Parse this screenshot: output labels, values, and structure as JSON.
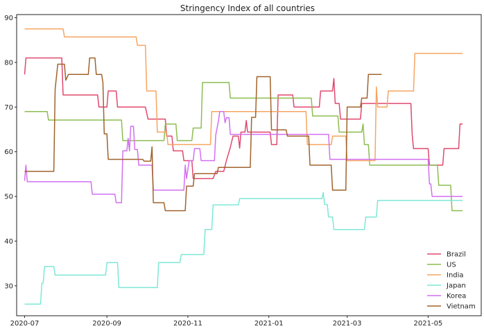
{
  "chart_data": {
    "type": "line",
    "title": "Stringency Index of all countries",
    "xlabel": "",
    "ylabel": "",
    "x_range": [
      "2020-06-25",
      "2021-06-10"
    ],
    "ylim": [
      23.3,
      90.7
    ],
    "x_ticks": [
      {
        "date": "2020-07-01",
        "label": "2020-07"
      },
      {
        "date": "2020-09-01",
        "label": "2020-09"
      },
      {
        "date": "2020-11-01",
        "label": "2020-11"
      },
      {
        "date": "2021-01-01",
        "label": "2021-01"
      },
      {
        "date": "2021-03-01",
        "label": "2021-03"
      },
      {
        "date": "2021-05-01",
        "label": "2021-05"
      }
    ],
    "y_ticks": [
      30,
      40,
      50,
      60,
      70,
      80,
      90
    ],
    "grid": false,
    "legend_position": "bottom-right",
    "series": [
      {
        "name": "Brazil",
        "color": "#e0486e",
        "points": [
          [
            "2020-07-01",
            77.3
          ],
          [
            "2020-07-02",
            81.0
          ],
          [
            "2020-07-29",
            81.0
          ],
          [
            "2020-07-30",
            72.7
          ],
          [
            "2020-08-25",
            72.7
          ],
          [
            "2020-08-26",
            70.0
          ],
          [
            "2020-09-01",
            70.0
          ],
          [
            "2020-09-02",
            73.6
          ],
          [
            "2020-09-08",
            73.6
          ],
          [
            "2020-09-09",
            70.0
          ],
          [
            "2020-09-30",
            70.0
          ],
          [
            "2020-10-02",
            67.3
          ],
          [
            "2020-10-15",
            67.3
          ],
          [
            "2020-10-16",
            63.5
          ],
          [
            "2020-10-20",
            63.5
          ],
          [
            "2020-10-21",
            60.2
          ],
          [
            "2020-10-28",
            60.2
          ],
          [
            "2020-10-29",
            58.0
          ],
          [
            "2020-11-04",
            58.0
          ],
          [
            "2020-11-05",
            54.0
          ],
          [
            "2020-11-20",
            54.0
          ],
          [
            "2020-11-22",
            55.6
          ],
          [
            "2020-11-28",
            55.6
          ],
          [
            "2020-11-30",
            58.0
          ],
          [
            "2020-12-03",
            61.0
          ],
          [
            "2020-12-05",
            63.5
          ],
          [
            "2020-12-09",
            63.5
          ],
          [
            "2020-12-10",
            60.8
          ],
          [
            "2020-12-11",
            64.4
          ],
          [
            "2020-12-14",
            64.4
          ],
          [
            "2020-12-15",
            67.0
          ],
          [
            "2020-12-16",
            64.4
          ],
          [
            "2021-01-02",
            64.4
          ],
          [
            "2021-01-03",
            61.6
          ],
          [
            "2021-01-07",
            61.6
          ],
          [
            "2021-01-08",
            72.7
          ],
          [
            "2021-01-19",
            72.7
          ],
          [
            "2021-01-20",
            70.0
          ],
          [
            "2021-02-08",
            70.0
          ],
          [
            "2021-02-09",
            73.6
          ],
          [
            "2021-02-18",
            73.6
          ],
          [
            "2021-02-19",
            76.4
          ],
          [
            "2021-02-20",
            70.8
          ],
          [
            "2021-02-23",
            70.8
          ],
          [
            "2021-02-24",
            67.3
          ],
          [
            "2021-03-11",
            67.3
          ],
          [
            "2021-03-12",
            70.8
          ],
          [
            "2021-04-18",
            70.8
          ],
          [
            "2021-04-19",
            63.8
          ],
          [
            "2021-04-20",
            60.7
          ],
          [
            "2021-05-01",
            60.7
          ],
          [
            "2021-05-02",
            57.0
          ],
          [
            "2021-05-12",
            57.0
          ],
          [
            "2021-05-13",
            60.7
          ],
          [
            "2021-05-24",
            60.7
          ],
          [
            "2021-05-25",
            66.2
          ],
          [
            "2021-05-27",
            66.2
          ]
        ]
      },
      {
        "name": "US",
        "color": "#8cbd50",
        "points": [
          [
            "2020-07-01",
            69.0
          ],
          [
            "2020-07-18",
            69.0
          ],
          [
            "2020-07-19",
            67.1
          ],
          [
            "2020-09-12",
            67.1
          ],
          [
            "2020-09-13",
            62.5
          ],
          [
            "2020-10-14",
            62.5
          ],
          [
            "2020-10-15",
            66.2
          ],
          [
            "2020-10-23",
            66.2
          ],
          [
            "2020-10-24",
            62.5
          ],
          [
            "2020-11-04",
            62.5
          ],
          [
            "2020-11-05",
            65.3
          ],
          [
            "2020-11-11",
            65.3
          ],
          [
            "2020-11-12",
            75.5
          ],
          [
            "2020-12-02",
            75.5
          ],
          [
            "2020-12-03",
            72.0
          ],
          [
            "2021-02-02",
            72.0
          ],
          [
            "2021-02-03",
            68.0
          ],
          [
            "2021-02-22",
            68.0
          ],
          [
            "2021-02-23",
            64.4
          ],
          [
            "2021-03-12",
            64.4
          ],
          [
            "2021-03-13",
            66.2
          ],
          [
            "2021-03-14",
            61.6
          ],
          [
            "2021-03-17",
            61.6
          ],
          [
            "2021-03-18",
            57.0
          ],
          [
            "2021-05-08",
            57.0
          ],
          [
            "2021-05-09",
            52.5
          ],
          [
            "2021-05-18",
            52.5
          ],
          [
            "2021-05-19",
            46.8
          ],
          [
            "2021-05-27",
            46.8
          ]
        ]
      },
      {
        "name": "India",
        "color": "#f6a561",
        "points": [
          [
            "2020-07-01",
            87.5
          ],
          [
            "2020-07-30",
            87.5
          ],
          [
            "2020-07-31",
            85.7
          ],
          [
            "2020-09-23",
            85.7
          ],
          [
            "2020-09-24",
            83.8
          ],
          [
            "2020-09-30",
            83.8
          ],
          [
            "2020-10-01",
            73.6
          ],
          [
            "2020-10-08",
            73.6
          ],
          [
            "2020-10-09",
            64.4
          ],
          [
            "2020-10-16",
            64.4
          ],
          [
            "2020-10-17",
            61.6
          ],
          [
            "2020-11-18",
            61.6
          ],
          [
            "2020-11-19",
            69.0
          ],
          [
            "2021-01-29",
            69.0
          ],
          [
            "2021-01-30",
            61.6
          ],
          [
            "2021-02-17",
            61.6
          ],
          [
            "2021-02-18",
            63.5
          ],
          [
            "2021-02-28",
            63.5
          ],
          [
            "2021-03-01",
            58.0
          ],
          [
            "2021-03-22",
            58.0
          ],
          [
            "2021-03-23",
            74.5
          ],
          [
            "2021-03-24",
            70.0
          ],
          [
            "2021-03-31",
            70.0
          ],
          [
            "2021-04-01",
            73.6
          ],
          [
            "2021-04-20",
            73.6
          ],
          [
            "2021-04-21",
            82.0
          ],
          [
            "2021-05-27",
            82.0
          ]
        ]
      },
      {
        "name": "Japan",
        "color": "#7de8d6",
        "points": [
          [
            "2020-07-01",
            25.9
          ],
          [
            "2020-07-13",
            25.9
          ],
          [
            "2020-07-14",
            30.6
          ],
          [
            "2020-07-15",
            30.6
          ],
          [
            "2020-07-16",
            34.3
          ],
          [
            "2020-07-23",
            34.3
          ],
          [
            "2020-07-24",
            32.4
          ],
          [
            "2020-08-31",
            32.4
          ],
          [
            "2020-09-01",
            35.2
          ],
          [
            "2020-09-09",
            35.2
          ],
          [
            "2020-09-10",
            29.6
          ],
          [
            "2020-10-09",
            29.6
          ],
          [
            "2020-10-10",
            35.2
          ],
          [
            "2020-10-26",
            35.2
          ],
          [
            "2020-10-27",
            37.0
          ],
          [
            "2020-11-13",
            37.0
          ],
          [
            "2020-11-14",
            42.6
          ],
          [
            "2020-11-19",
            42.6
          ],
          [
            "2020-11-20",
            48.1
          ],
          [
            "2020-12-09",
            48.1
          ],
          [
            "2020-12-10",
            49.5
          ],
          [
            "2021-02-10",
            49.5
          ],
          [
            "2021-02-11",
            50.9
          ],
          [
            "2021-02-12",
            48.2
          ],
          [
            "2021-02-14",
            48.2
          ],
          [
            "2021-02-15",
            45.4
          ],
          [
            "2021-02-18",
            45.4
          ],
          [
            "2021-02-19",
            42.6
          ],
          [
            "2021-03-14",
            42.6
          ],
          [
            "2021-03-15",
            45.4
          ],
          [
            "2021-03-23",
            45.4
          ],
          [
            "2021-03-24",
            49.1
          ],
          [
            "2021-05-27",
            49.1
          ]
        ]
      },
      {
        "name": "Korea",
        "color": "#d26ff0",
        "points": [
          [
            "2020-07-01",
            53.5
          ],
          [
            "2020-07-02",
            57.0
          ],
          [
            "2020-07-03",
            53.3
          ],
          [
            "2020-08-20",
            53.3
          ],
          [
            "2020-08-21",
            50.5
          ],
          [
            "2020-09-07",
            50.5
          ],
          [
            "2020-09-08",
            48.6
          ],
          [
            "2020-09-12",
            48.6
          ],
          [
            "2020-09-13",
            60.2
          ],
          [
            "2020-09-16",
            60.2
          ],
          [
            "2020-09-17",
            63.0
          ],
          [
            "2020-09-18",
            60.2
          ],
          [
            "2020-09-19",
            65.7
          ],
          [
            "2020-09-21",
            65.7
          ],
          [
            "2020-09-22",
            60.5
          ],
          [
            "2020-09-24",
            60.5
          ],
          [
            "2020-09-25",
            57.0
          ],
          [
            "2020-10-05",
            57.0
          ],
          [
            "2020-10-06",
            51.4
          ],
          [
            "2020-10-29",
            51.4
          ],
          [
            "2020-10-30",
            57.0
          ],
          [
            "2020-10-31",
            54.0
          ],
          [
            "2020-11-02",
            58.0
          ],
          [
            "2020-11-05",
            58.0
          ],
          [
            "2020-11-06",
            60.7
          ],
          [
            "2020-11-10",
            60.7
          ],
          [
            "2020-11-11",
            58.0
          ],
          [
            "2020-11-21",
            58.0
          ],
          [
            "2020-11-22",
            63.8
          ],
          [
            "2020-11-24",
            66.8
          ],
          [
            "2020-11-25",
            69.0
          ],
          [
            "2020-11-28",
            69.0
          ],
          [
            "2020-11-29",
            66.5
          ],
          [
            "2020-11-30",
            67.6
          ],
          [
            "2020-12-02",
            67.6
          ],
          [
            "2020-12-03",
            63.9
          ],
          [
            "2021-02-15",
            63.9
          ],
          [
            "2021-02-16",
            58.3
          ],
          [
            "2021-05-01",
            58.3
          ],
          [
            "2021-05-02",
            52.8
          ],
          [
            "2021-05-03",
            52.8
          ],
          [
            "2021-05-04",
            50.0
          ],
          [
            "2021-05-27",
            50.0
          ]
        ]
      },
      {
        "name": "Vietnam",
        "color": "#a0632c",
        "points": [
          [
            "2020-07-01",
            55.6
          ],
          [
            "2020-07-23",
            55.6
          ],
          [
            "2020-07-24",
            74.0
          ],
          [
            "2020-07-26",
            79.6
          ],
          [
            "2020-07-31",
            79.6
          ],
          [
            "2020-08-01",
            76.0
          ],
          [
            "2020-08-03",
            77.3
          ],
          [
            "2020-08-18",
            77.3
          ],
          [
            "2020-08-19",
            81.0
          ],
          [
            "2020-08-23",
            81.0
          ],
          [
            "2020-08-24",
            77.3
          ],
          [
            "2020-08-28",
            77.3
          ],
          [
            "2020-08-29",
            75.5
          ],
          [
            "2020-08-30",
            64.0
          ],
          [
            "2020-09-01",
            64.0
          ],
          [
            "2020-09-02",
            58.3
          ],
          [
            "2020-09-28",
            58.3
          ],
          [
            "2020-09-29",
            57.9
          ],
          [
            "2020-10-04",
            57.9
          ],
          [
            "2020-10-05",
            61.1
          ],
          [
            "2020-10-06",
            48.6
          ],
          [
            "2020-10-14",
            48.6
          ],
          [
            "2020-10-15",
            46.8
          ],
          [
            "2020-10-30",
            46.8
          ],
          [
            "2020-10-31",
            52.3
          ],
          [
            "2020-11-05",
            52.3
          ],
          [
            "2020-11-06",
            55.1
          ],
          [
            "2020-11-23",
            55.1
          ],
          [
            "2020-11-24",
            56.5
          ],
          [
            "2020-12-18",
            56.5
          ],
          [
            "2020-12-19",
            67.7
          ],
          [
            "2020-12-22",
            67.7
          ],
          [
            "2020-12-23",
            76.8
          ],
          [
            "2021-01-02",
            76.8
          ],
          [
            "2021-01-03",
            64.9
          ],
          [
            "2021-01-14",
            64.9
          ],
          [
            "2021-01-15",
            63.5
          ],
          [
            "2021-01-31",
            63.5
          ],
          [
            "2021-02-01",
            57.0
          ],
          [
            "2021-02-17",
            57.0
          ],
          [
            "2021-02-18",
            51.4
          ],
          [
            "2021-02-28",
            51.4
          ],
          [
            "2021-03-01",
            70.0
          ],
          [
            "2021-03-11",
            70.0
          ],
          [
            "2021-03-12",
            72.0
          ],
          [
            "2021-03-16",
            72.0
          ],
          [
            "2021-03-17",
            77.3
          ],
          [
            "2021-03-27",
            77.3
          ]
        ]
      }
    ]
  }
}
